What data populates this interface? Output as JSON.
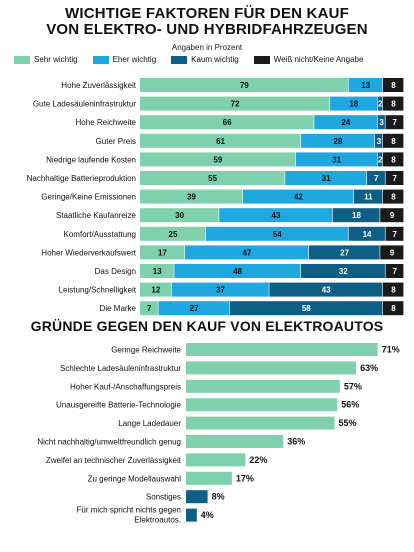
{
  "colors": {
    "sehr": "#7fd1ae",
    "eher": "#1fa8e0",
    "kaum": "#0d5f86",
    "weiss": "#1a1a1a",
    "gegen_main": "#7fd1ae",
    "gegen_alt": "#0d5f86"
  },
  "chart1": {
    "title_line1": "WICHTIGE FAKTOREN FÜR DEN KAUF",
    "title_line2": "VON ELEKTRO- UND HYBRIDFAHRZEUGEN",
    "subtitle": "Angaben in Prozent",
    "legend": [
      "Sehr wichtig",
      "Eher wichtig",
      "Kaum wichtig",
      "Weiß nicht/Keine Angabe"
    ]
  },
  "chart2": {
    "title": "GRÜNDE GEGEN DEN KAUF VON ELEKTROAUTOS"
  },
  "chart_data": [
    {
      "type": "bar",
      "stacked": true,
      "orientation": "horizontal",
      "title": "WICHTIGE FAKTOREN FÜR DEN KAUF VON ELEKTRO- UND HYBRIDFAHRZEUGEN",
      "subtitle": "Angaben in Prozent",
      "categories": [
        "Hohe Zuverlässigkeit",
        "Gute Ladesäuleninfrastruktur",
        "Hohe Reichweite",
        "Guter Preis",
        "Niedrige laufende Kosten",
        "Nachhaltige Batterieproduktion",
        "Geringe/Keine Emissionen",
        "Staatliche Kaufanreize",
        "Komfort/Ausstattung",
        "Hoher Wiederverkaufswert",
        "Das Design",
        "Leistung/Schnelligkeit",
        "Die Marke"
      ],
      "series": [
        {
          "name": "Sehr wichtig",
          "values": [
            79,
            72,
            66,
            61,
            59,
            55,
            39,
            30,
            25,
            17,
            13,
            12,
            7
          ]
        },
        {
          "name": "Eher wichtig",
          "values": [
            13,
            18,
            24,
            28,
            31,
            31,
            42,
            43,
            54,
            47,
            48,
            37,
            27
          ]
        },
        {
          "name": "Kaum wichtig",
          "values": [
            null,
            2,
            3,
            3,
            2,
            7,
            11,
            18,
            14,
            27,
            32,
            43,
            58
          ]
        },
        {
          "name": "Weiß nicht/Keine Angabe",
          "values": [
            8,
            8,
            7,
            8,
            8,
            7,
            8,
            9,
            7,
            9,
            7,
            8,
            8
          ]
        }
      ],
      "legend": "top"
    },
    {
      "type": "bar",
      "orientation": "horizontal",
      "title": "GRÜNDE GEGEN DEN KAUF VON ELEKTROAUTOS",
      "categories": [
        "Geringe Reichweite",
        "Schlechte Ladesäuleninfrastruktur",
        "Hoher Kauf-/Anschaffungspreis",
        "Unausgereifte Batterie-Technologie",
        "Lange Ladedauer",
        "Nicht nachhaltig/umweltfreundlich genug",
        "Zweifel an technischer Zuverlässigkeit",
        "Zu geringe Modellauswahl",
        "Sonstiges",
        "Für mich spricht nichts gegen Elektroautos."
      ],
      "values": [
        71,
        63,
        57,
        56,
        55,
        36,
        22,
        17,
        8,
        4
      ],
      "value_labels": [
        "71%",
        "63%",
        "57%",
        "56%",
        "55%",
        "36%",
        "22%",
        "17%",
        "8%",
        "4%"
      ],
      "highlight": [
        false,
        false,
        false,
        false,
        false,
        false,
        false,
        false,
        true,
        true
      ]
    }
  ]
}
